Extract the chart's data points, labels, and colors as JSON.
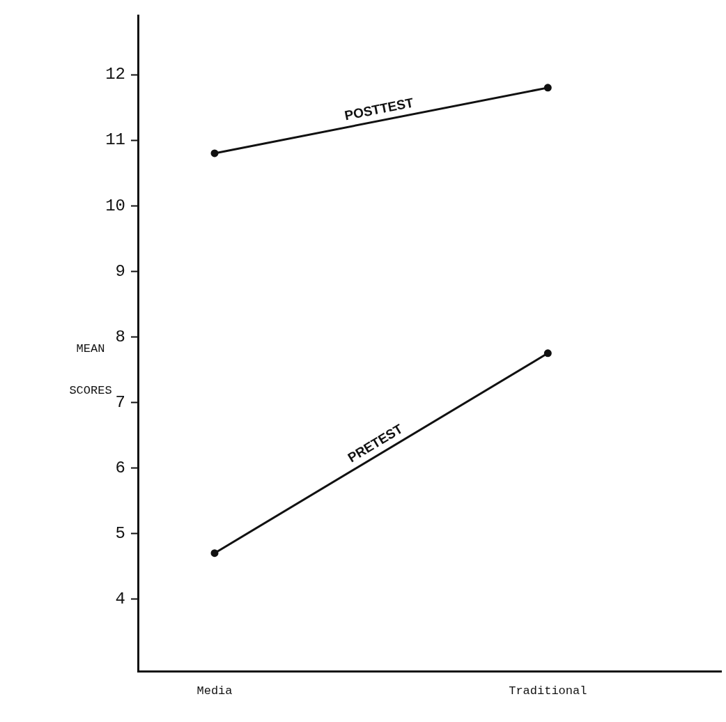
{
  "chart_data": {
    "type": "line",
    "ylabel": "MEAN SCORES",
    "categories": [
      "Media",
      "Traditional"
    ],
    "series": [
      {
        "name": "POSTTEST",
        "color": "#111111",
        "values": [
          10.8,
          11.8
        ]
      },
      {
        "name": "PRETEST",
        "color": "#111111",
        "values": [
          4.7,
          7.75
        ]
      }
    ],
    "ylim": [
      2.9,
      12.9
    ],
    "yticks": [
      4,
      5,
      6,
      7,
      8,
      9,
      10,
      11,
      12
    ],
    "grid": false,
    "legend": false,
    "marker": "circle",
    "line_style": "solid"
  }
}
